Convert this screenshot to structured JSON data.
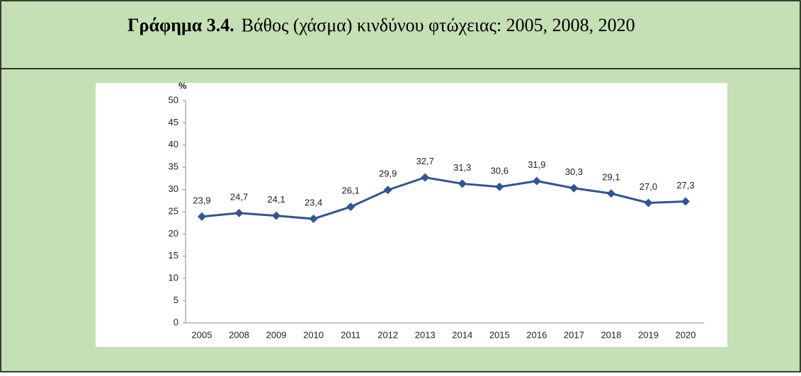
{
  "chart_data": {
    "type": "line",
    "label": "Γράφημα 3.4.",
    "title": "Βάθος (χάσμα) κινδύνου φτώχειας: 2005, 2008, 2020",
    "ylabel": "%",
    "categories": [
      "2005",
      "2008",
      "2009",
      "2010",
      "2011",
      "2012",
      "2013",
      "2014",
      "2015",
      "2016",
      "2017",
      "2018",
      "2019",
      "2020"
    ],
    "series": [
      {
        "color": "#2f5597",
        "values": [
          23.9,
          24.7,
          24.1,
          23.4,
          26.1,
          29.9,
          32.7,
          31.3,
          30.6,
          31.9,
          30.3,
          29.1,
          27.0,
          27.3
        ],
        "value_labels": [
          "23,9",
          "24,7",
          "24,1",
          "23,4",
          "26,1",
          "29,9",
          "32,7",
          "31,3",
          "30,6",
          "31,9",
          "30,3",
          "29,1",
          "27,0",
          "27,3"
        ]
      }
    ],
    "ylim": [
      0,
      50
    ],
    "yticks": [
      0,
      5,
      10,
      15,
      20,
      25,
      30,
      35,
      40,
      45,
      50
    ]
  }
}
